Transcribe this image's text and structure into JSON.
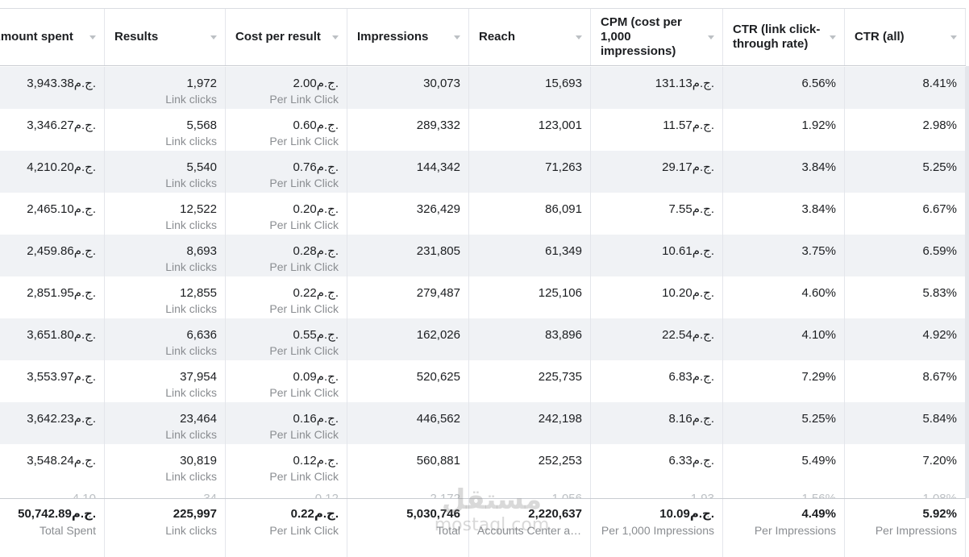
{
  "columns": [
    {
      "label": "Amount spent"
    },
    {
      "label": "Results"
    },
    {
      "label": "Cost per result"
    },
    {
      "label": "Impressions"
    },
    {
      "label": "Reach"
    },
    {
      "label": "CPM (cost per\n1,000\nimpressions)"
    },
    {
      "label": "CTR (link click-\nthrough rate)"
    },
    {
      "label": "CTR (all)"
    }
  ],
  "rows": [
    {
      "amount": "3,943.38ج.م.",
      "results": "1,972",
      "results_sub": "Link clicks",
      "cpr": "2.00ج.م.",
      "cpr_sub": "Per Link Click",
      "impressions": "30,073",
      "reach": "15,693",
      "cpm": "131.13ج.م.",
      "ctr_link": "6.56%",
      "ctr_all": "8.41%"
    },
    {
      "amount": "3,346.27ج.م.",
      "results": "5,568",
      "results_sub": "Link clicks",
      "cpr": "0.60ج.م.",
      "cpr_sub": "Per Link Click",
      "impressions": "289,332",
      "reach": "123,001",
      "cpm": "11.57ج.م.",
      "ctr_link": "1.92%",
      "ctr_all": "2.98%"
    },
    {
      "amount": "4,210.20ج.م.",
      "results": "5,540",
      "results_sub": "Link clicks",
      "cpr": "0.76ج.م.",
      "cpr_sub": "Per Link Click",
      "impressions": "144,342",
      "reach": "71,263",
      "cpm": "29.17ج.م.",
      "ctr_link": "3.84%",
      "ctr_all": "5.25%"
    },
    {
      "amount": "2,465.10ج.م.",
      "results": "12,522",
      "results_sub": "Link clicks",
      "cpr": "0.20ج.م.",
      "cpr_sub": "Per Link Click",
      "impressions": "326,429",
      "reach": "86,091",
      "cpm": "7.55ج.م.",
      "ctr_link": "3.84%",
      "ctr_all": "6.67%"
    },
    {
      "amount": "2,459.86ج.م.",
      "results": "8,693",
      "results_sub": "Link clicks",
      "cpr": "0.28ج.م.",
      "cpr_sub": "Per Link Click",
      "impressions": "231,805",
      "reach": "61,349",
      "cpm": "10.61ج.م.",
      "ctr_link": "3.75%",
      "ctr_all": "6.59%"
    },
    {
      "amount": "2,851.95ج.م.",
      "results": "12,855",
      "results_sub": "Link clicks",
      "cpr": "0.22ج.م.",
      "cpr_sub": "Per Link Click",
      "impressions": "279,487",
      "reach": "125,106",
      "cpm": "10.20ج.م.",
      "ctr_link": "4.60%",
      "ctr_all": "5.83%"
    },
    {
      "amount": "3,651.80ج.م.",
      "results": "6,636",
      "results_sub": "Link clicks",
      "cpr": "0.55ج.م.",
      "cpr_sub": "Per Link Click",
      "impressions": "162,026",
      "reach": "83,896",
      "cpm": "22.54ج.م.",
      "ctr_link": "4.10%",
      "ctr_all": "4.92%"
    },
    {
      "amount": "3,553.97ج.م.",
      "results": "37,954",
      "results_sub": "Link clicks",
      "cpr": "0.09ج.م.",
      "cpr_sub": "Per Link Click",
      "impressions": "520,625",
      "reach": "225,735",
      "cpm": "6.83ج.م.",
      "ctr_link": "7.29%",
      "ctr_all": "8.67%"
    },
    {
      "amount": "3,642.23ج.م.",
      "results": "23,464",
      "results_sub": "Link clicks",
      "cpr": "0.16ج.م.",
      "cpr_sub": "Per Link Click",
      "impressions": "446,562",
      "reach": "242,198",
      "cpm": "8.16ج.م.",
      "ctr_link": "5.25%",
      "ctr_all": "5.84%"
    },
    {
      "amount": "3,548.24ج.م.",
      "results": "30,819",
      "results_sub": "Link clicks",
      "cpr": "0.12ج.م.",
      "cpr_sub": "Per Link Click",
      "impressions": "560,881",
      "reach": "252,253",
      "cpm": "6.33ج.م.",
      "ctr_link": "5.49%",
      "ctr_all": "7.20%"
    }
  ],
  "partial_row": {
    "amount": "4.10",
    "results": "34",
    "cpr": "0.12",
    "impressions": "2,172",
    "reach": "1,056",
    "cpm": "1.93",
    "ctr_link": "1.56%",
    "ctr_all": "1.08%"
  },
  "totals": {
    "amount": "50,742.89ج.م.",
    "amount_sub": "Total Spent",
    "results": "225,997",
    "results_sub": "Link clicks",
    "cpr": "0.22ج.م.",
    "cpr_sub": "Per Link Click",
    "impressions": "5,030,746",
    "impressions_sub": "Total",
    "reach": "2,220,637",
    "reach_sub": "Accounts Center ac...",
    "cpm": "10.09ج.م.",
    "cpm_sub": "Per 1,000 Impressions",
    "ctr_link": "4.49%",
    "ctr_link_sub": "Per Impressions",
    "ctr_all": "5.92%",
    "ctr_all_sub": "Per Impressions"
  },
  "watermark": {
    "arabic": "مستقل",
    "latin": "mostaql.com"
  },
  "icons": {
    "sort": "chevron-down-icon"
  },
  "colors": {
    "row_alt": "#f0f2f5",
    "border": "#e4e6eb",
    "muted_text": "#8a8d91"
  }
}
